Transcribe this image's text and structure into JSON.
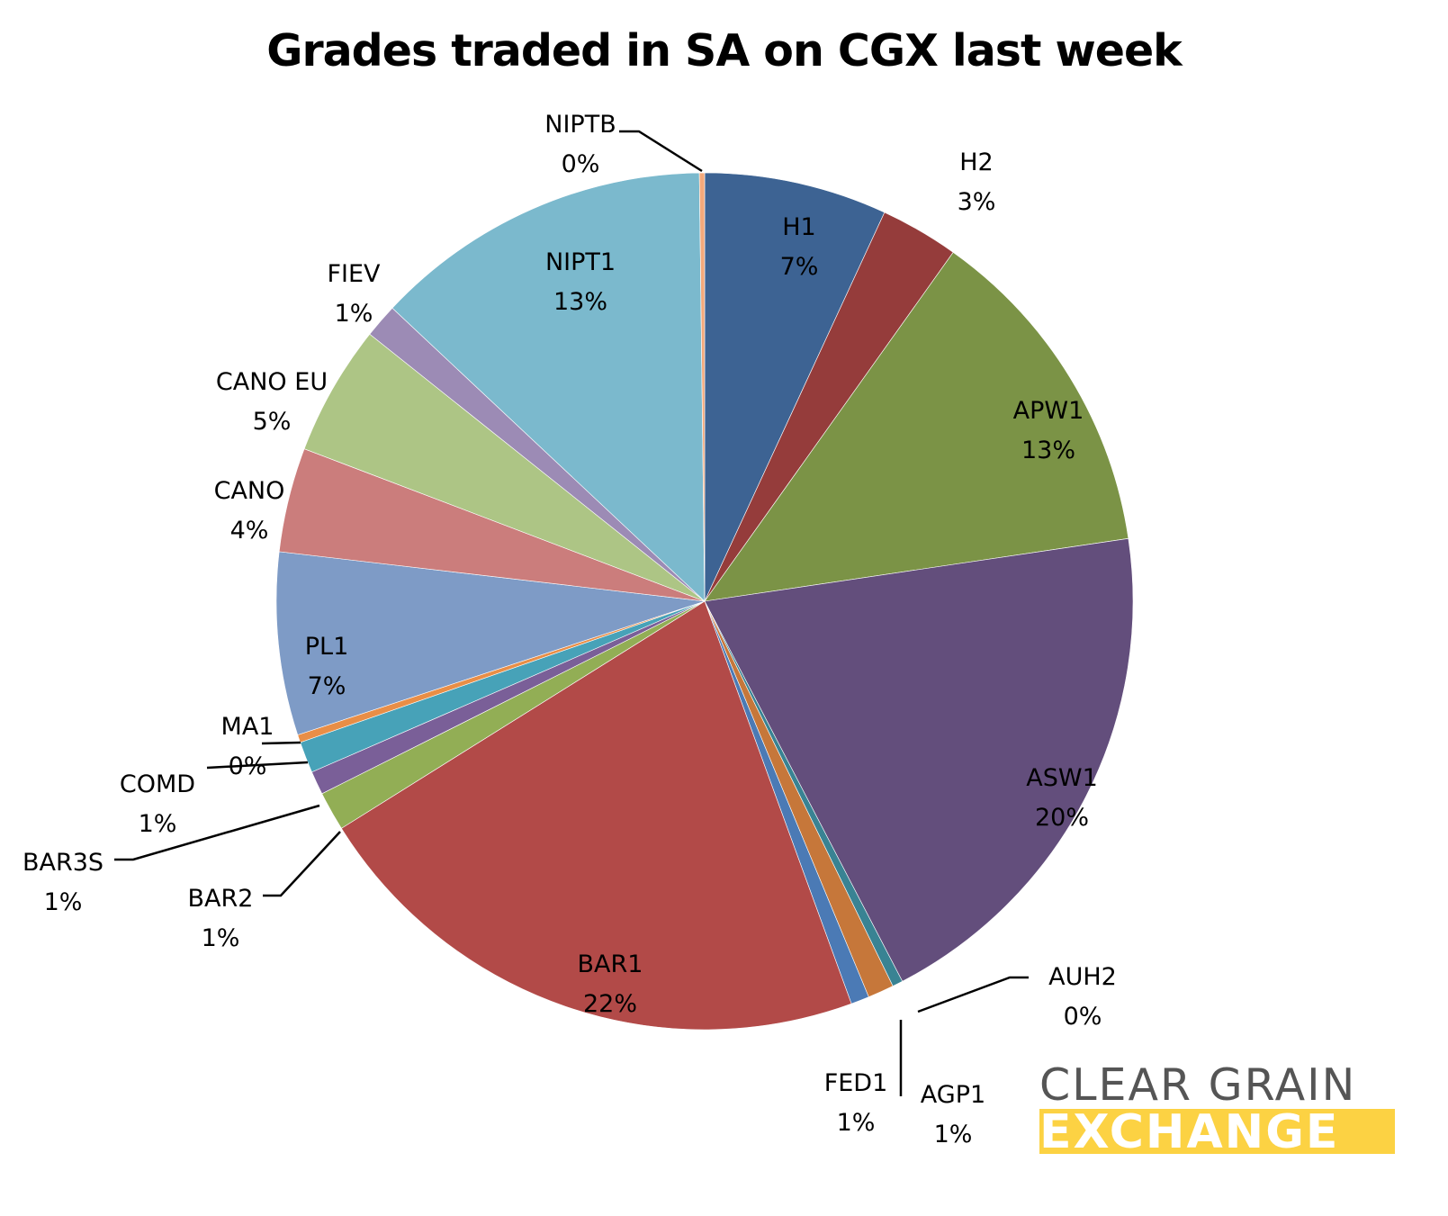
{
  "chart_data": {
    "type": "pie",
    "title": "Grades traded in SA on CGX last week",
    "label_format": "category + percentage",
    "start_angle": "12 o'clock, clockwise",
    "slices": [
      {
        "label": "H1",
        "value": 7,
        "display": "7%",
        "color": "#3d6393"
      },
      {
        "label": "H2",
        "value": 3,
        "display": "3%",
        "color": "#953c3b"
      },
      {
        "label": "APW1",
        "value": 13,
        "display": "13%",
        "color": "#7b9346"
      },
      {
        "label": "ASW1",
        "value": 20,
        "display": "20%",
        "color": "#634e7c"
      },
      {
        "label": "AUH2",
        "value": 0.4,
        "display": "0%",
        "color": "#398393"
      },
      {
        "label": "AGP1",
        "value": 1,
        "display": "1%",
        "color": "#c6773a"
      },
      {
        "label": "FED1",
        "value": 0.7,
        "display": "1%",
        "color": "#4b7ab5"
      },
      {
        "label": "BAR1",
        "value": 22,
        "display": "22%",
        "color": "#b24a48"
      },
      {
        "label": "BAR2",
        "value": 1.5,
        "display": "1%",
        "color": "#92ae55"
      },
      {
        "label": "BAR3S",
        "value": 0.9,
        "display": "1%",
        "color": "#7a5f98"
      },
      {
        "label": "COMD",
        "value": 1.2,
        "display": "1%",
        "color": "#47a2b8"
      },
      {
        "label": "MA1",
        "value": 0.3,
        "display": "0%",
        "color": "#e98e46"
      },
      {
        "label": "PL1",
        "value": 7,
        "display": "7%",
        "color": "#7e9bc6"
      },
      {
        "label": "CANO",
        "value": 4,
        "display": "4%",
        "color": "#cb7d7c"
      },
      {
        "label": "CANO EU",
        "value": 5,
        "display": "5%",
        "color": "#adc585"
      },
      {
        "label": "FIEV",
        "value": 1.3,
        "display": "1%",
        "color": "#9c8bb5"
      },
      {
        "label": "NIPT1",
        "value": 13,
        "display": "13%",
        "color": "#7bb9cd"
      },
      {
        "label": "NIPTB",
        "value": 0.2,
        "display": "0%",
        "color": "#f4a97b"
      }
    ],
    "legend": "none (data labels on/beside slices)"
  },
  "title": "Grades traded in SA on CGX last week",
  "labels": {
    "H1": {
      "name": "H1",
      "pct": "7%"
    },
    "H2": {
      "name": "H2",
      "pct": "3%"
    },
    "APW1": {
      "name": "APW1",
      "pct": "13%"
    },
    "ASW1": {
      "name": "ASW1",
      "pct": "20%"
    },
    "AUH2": {
      "name": "AUH2",
      "pct": "0%"
    },
    "AGP1": {
      "name": "AGP1",
      "pct": "1%"
    },
    "FED1": {
      "name": "FED1",
      "pct": "1%"
    },
    "BAR1": {
      "name": "BAR1",
      "pct": "22%"
    },
    "BAR2": {
      "name": "BAR2",
      "pct": "1%"
    },
    "BAR3S": {
      "name": "BAR3S",
      "pct": "1%"
    },
    "COMD": {
      "name": "COMD",
      "pct": "1%"
    },
    "MA1": {
      "name": "MA1",
      "pct": "0%"
    },
    "PL1": {
      "name": "PL1",
      "pct": "7%"
    },
    "CANO": {
      "name": "CANO",
      "pct": "4%"
    },
    "CANO_EU": {
      "name": "CANO EU",
      "pct": "5%"
    },
    "FIEV": {
      "name": "FIEV",
      "pct": "1%"
    },
    "NIPT1": {
      "name": "NIPT1",
      "pct": "13%"
    },
    "NIPTB": {
      "name": "NIPTB",
      "pct": "0%"
    }
  },
  "logo": {
    "line1": "CLEAR GRAIN",
    "line2": "EXCHANGE",
    "text_color": "#555555",
    "band_color": "#fcd243"
  }
}
